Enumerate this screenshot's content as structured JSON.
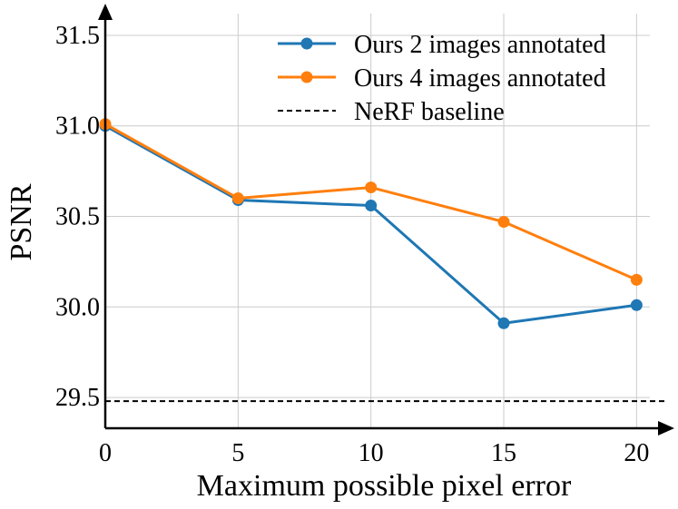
{
  "chart_data": {
    "type": "line",
    "title": "",
    "xlabel": "Maximum possible pixel error",
    "ylabel": "PSNR",
    "x": [
      0,
      5,
      10,
      15,
      20
    ],
    "xlim": [
      0,
      20.5
    ],
    "ylim": [
      29.33,
      31.62
    ],
    "xticks": [
      0,
      5,
      10,
      15,
      20
    ],
    "xtick_labels": [
      "0",
      "5",
      "10",
      "15",
      "20"
    ],
    "yticks": [
      29.5,
      30.0,
      30.5,
      31.0,
      31.5
    ],
    "ytick_labels": [
      "29.5",
      "30.0",
      "30.5",
      "31.0",
      "31.5"
    ],
    "grid": true,
    "legend_position": "top-right",
    "series": [
      {
        "name": "Ours 2 images annotated",
        "values": [
          31.0,
          30.59,
          30.56,
          29.91,
          30.01
        ],
        "color": "#1f77b4"
      },
      {
        "name": "Ours 4 images annotated",
        "values": [
          31.01,
          30.6,
          30.66,
          30.47,
          30.15
        ],
        "color": "#ff7f0e"
      }
    ],
    "baseline": {
      "name": "NeRF baseline",
      "value": 29.48,
      "color": "#000000",
      "style": "dashed"
    }
  }
}
